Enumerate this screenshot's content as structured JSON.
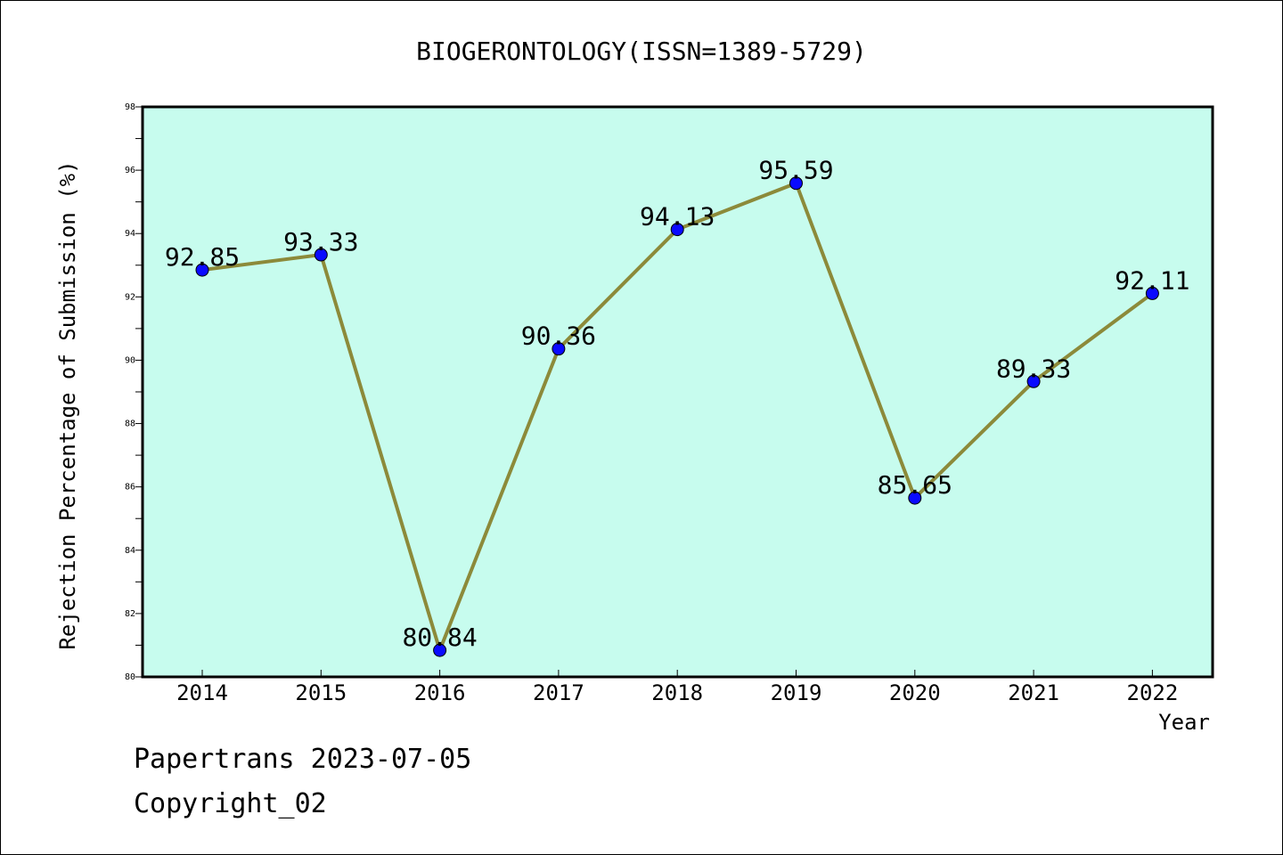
{
  "chart_data": {
    "type": "line",
    "title": "BIOGERONTOLOGY(ISSN=1389-5729)",
    "xlabel": "Year",
    "ylabel": "Rejection Percentage of Submission (%)",
    "categories": [
      "2014",
      "2015",
      "2016",
      "2017",
      "2018",
      "2019",
      "2020",
      "2021",
      "2022"
    ],
    "values": [
      92.85,
      93.33,
      80.84,
      90.36,
      94.13,
      95.59,
      85.65,
      89.33,
      92.11
    ],
    "data_labels": [
      "92.85",
      "93.33",
      "80.84",
      "90.36",
      "94.13",
      "95.59",
      "85.65",
      "89.33",
      "92.11"
    ],
    "ylim": [
      80,
      98
    ],
    "yticks": [
      80,
      82,
      84,
      86,
      88,
      90,
      92,
      94,
      96,
      98
    ],
    "grid": false,
    "plot_background": "#c7fcee",
    "line_color": "#8c8a3a",
    "marker_color": "#0a0aff"
  },
  "footer": {
    "line1": "Papertrans 2023-07-05",
    "line2": "Copyright_02"
  }
}
